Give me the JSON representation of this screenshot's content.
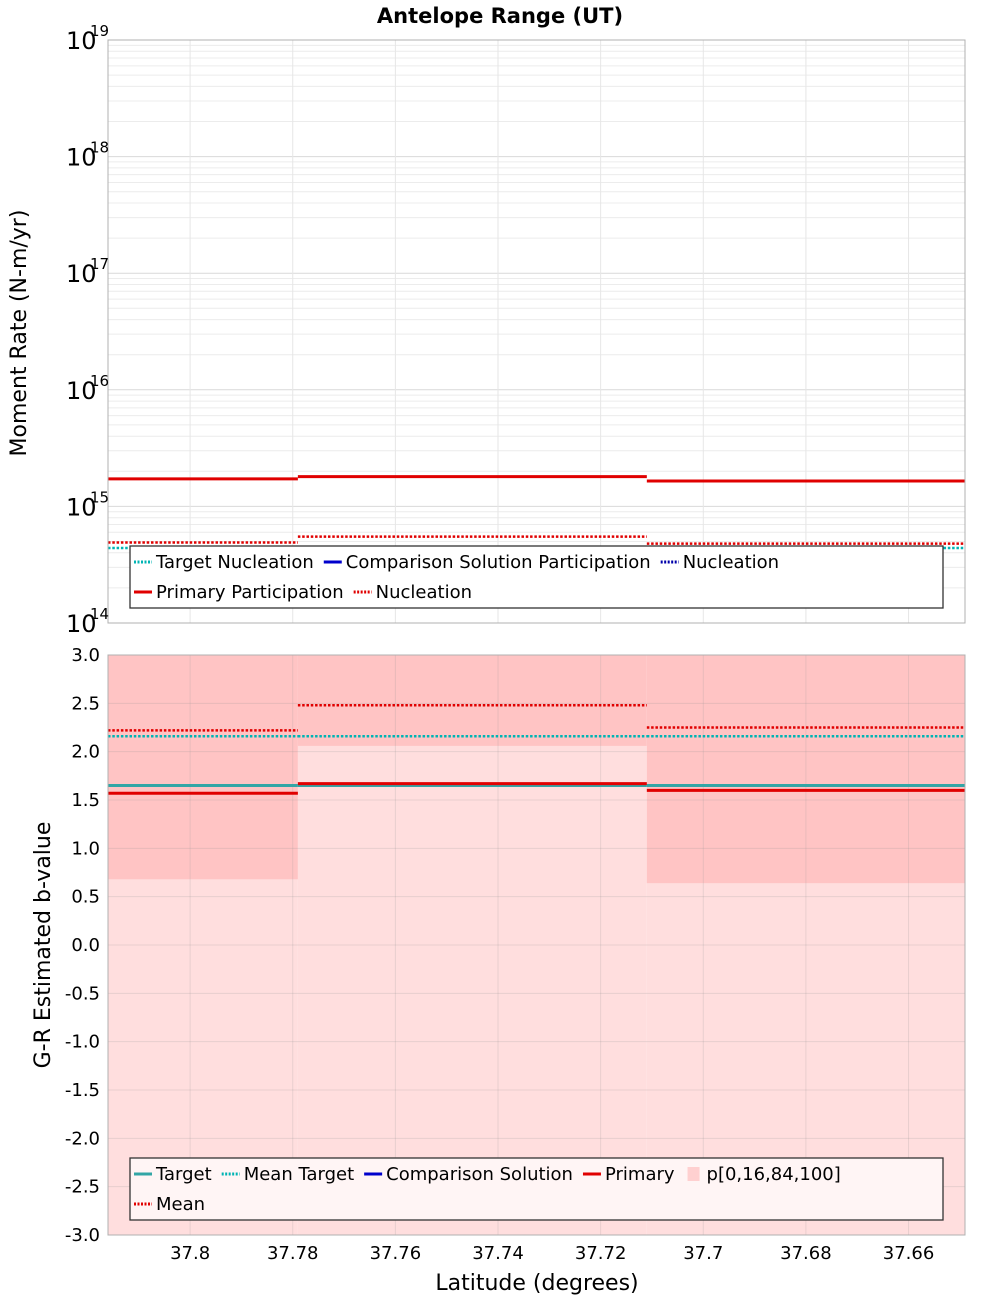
{
  "chart_data": [
    {
      "type": "line",
      "title": "Antelope Range (UT)",
      "xlabel": "Latitude (degrees)",
      "ylabel": "Moment Rate (N-m/yr)",
      "yscale": "log",
      "ylim": [
        100000000000000.0,
        1e+19
      ],
      "xlim": [
        37.816,
        37.649
      ],
      "grid": true,
      "y_ticks": [
        {
          "base": "10",
          "exp": "14"
        },
        {
          "base": "10",
          "exp": "15"
        },
        {
          "base": "10",
          "exp": "16"
        },
        {
          "base": "10",
          "exp": "17"
        },
        {
          "base": "10",
          "exp": "18"
        },
        {
          "base": "10",
          "exp": "19"
        }
      ],
      "segments": [
        {
          "x0": 37.816,
          "x1": 37.779
        },
        {
          "x0": 37.779,
          "x1": 37.711
        },
        {
          "x0": 37.711,
          "x1": 37.649
        }
      ],
      "series": [
        {
          "name": "Target Nucleation",
          "color": "#00b4b4",
          "style": "dotted",
          "values": [
            440000000000000.0,
            440000000000000.0,
            440000000000000.0
          ]
        },
        {
          "name": "Comparison Solution Participation",
          "color": "#0000cc",
          "style": "solid",
          "values": [
            null,
            null,
            null
          ]
        },
        {
          "name": "Comparison Nucleation",
          "color": "#0000cc",
          "style": "dotted",
          "values": [
            null,
            null,
            null
          ]
        },
        {
          "name": "Primary Participation",
          "color": "#e00000",
          "style": "solid",
          "values": [
            1720000000000000.0,
            1800000000000000.0,
            1650000000000000.0
          ]
        },
        {
          "name": "Primary Nucleation",
          "color": "#e00000",
          "style": "dotted",
          "values": [
            490000000000000.0,
            550000000000000.0,
            480000000000000.0
          ]
        }
      ],
      "legend": {
        "placement": "bottom",
        "rows": [
          [
            {
              "label": "Target Nucleation",
              "color": "#00b4b4",
              "style": "dotted"
            },
            {
              "label": "Comparison Solution Participation",
              "color": "#0000cc",
              "style": "solid"
            },
            {
              "label": "Nucleation",
              "color": "#0000aa",
              "style": "dotted"
            }
          ],
          [
            {
              "label": "Primary Participation",
              "color": "#e00000",
              "style": "solid"
            },
            {
              "label": "Nucleation",
              "color": "#e00000",
              "style": "dotted"
            }
          ]
        ]
      }
    },
    {
      "type": "line",
      "xlabel": "Latitude (degrees)",
      "ylabel": "G-R Estimated b-value",
      "ylim": [
        -3.0,
        3.0
      ],
      "xlim": [
        37.816,
        37.649
      ],
      "grid": true,
      "y_ticks": [
        "-3.0",
        "-2.5",
        "-2.0",
        "-1.5",
        "-1.0",
        "-0.5",
        "0.0",
        "0.5",
        "1.0",
        "1.5",
        "2.0",
        "2.5",
        "3.0"
      ],
      "x_ticks": [
        "37.8",
        "37.78",
        "37.76",
        "37.74",
        "37.72",
        "37.7",
        "37.68",
        "37.66"
      ],
      "segments": [
        {
          "x0": 37.816,
          "x1": 37.779
        },
        {
          "x0": 37.779,
          "x1": 37.711
        },
        {
          "x0": 37.711,
          "x1": 37.649
        }
      ],
      "percentile_bands": {
        "name": "p[0,16,84,100]",
        "outer": {
          "color": "#ffdede",
          "p0": [
            -3.0,
            -3.0,
            -3.0
          ],
          "p100": [
            3.0,
            3.0,
            3.0
          ]
        },
        "inner": {
          "color": "#ffc4c4",
          "p16": [
            0.68,
            2.06,
            0.64
          ],
          "p84": [
            3.0,
            3.0,
            3.0
          ]
        }
      },
      "series": [
        {
          "name": "Target",
          "color": "#33a6a6",
          "style": "solid",
          "values": [
            1.65,
            1.65,
            1.65
          ]
        },
        {
          "name": "Mean Target",
          "color": "#00b4b4",
          "style": "dotted",
          "values": [
            2.16,
            2.16,
            2.16
          ]
        },
        {
          "name": "Primary",
          "color": "#e00000",
          "style": "solid",
          "values": [
            1.57,
            1.67,
            1.6
          ]
        },
        {
          "name": "Mean",
          "color": "#e00000",
          "style": "dotted",
          "values": [
            2.22,
            2.48,
            2.25
          ]
        }
      ],
      "legend": {
        "placement": "bottom",
        "rows": [
          [
            {
              "label": "Target",
              "color": "#33a6a6",
              "style": "solid"
            },
            {
              "label": "Mean Target",
              "color": "#00b4b4",
              "style": "dotted"
            },
            {
              "label": "Comparison Solution",
              "color": "#0000cc",
              "style": "solid"
            },
            {
              "label": "Primary",
              "color": "#e00000",
              "style": "solid"
            },
            {
              "label": "p[0,16,84,100]",
              "color": "#ffd0d0",
              "style": "box"
            }
          ],
          [
            {
              "label": "Mean",
              "color": "#e00000",
              "style": "dotted"
            }
          ]
        ]
      }
    }
  ]
}
